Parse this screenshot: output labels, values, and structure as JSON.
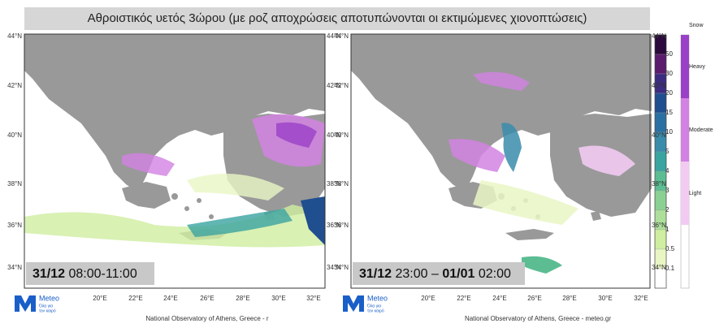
{
  "header": {
    "title": "Αθροιστικός υετός 3ώρου (με ροζ αποχρώσεις αποτυπώνονται οι εκτιμώμενες χιονοπτώσεις)"
  },
  "maps": [
    {
      "lat_labels": [
        "44°N",
        "42°N",
        "40°N",
        "38°N",
        "36°N",
        "34°N"
      ],
      "lon_labels": [
        "20°E",
        "22°E",
        "24°E",
        "26°E",
        "28°E",
        "30°E",
        "32°E"
      ],
      "date_parts": [
        {
          "text": "31/12",
          "bold": true
        },
        {
          "text": " 08:00-11:00",
          "bold": false
        }
      ],
      "footer": "National Observatory of Athens, Greece - r"
    },
    {
      "lat_labels": [
        "44°N",
        "42°N",
        "40°N",
        "38°N",
        "36°N",
        "34°N"
      ],
      "lon_labels": [
        "20°E",
        "22°E",
        "24°E",
        "26°E",
        "28°E",
        "30°E",
        "32°E"
      ],
      "date_parts": [
        {
          "text": "31/12",
          "bold": true
        },
        {
          "text": " 23:00 – ",
          "bold": false
        },
        {
          "text": "01/01",
          "bold": true
        },
        {
          "text": " 02:00",
          "bold": false
        }
      ],
      "footer": "National Observatory of Athens, Greece - meteo.gr"
    }
  ],
  "logo": {
    "name": "Meteo",
    "tagline_1": "Όλα για",
    "tagline_2": "τον καιρό"
  },
  "rain_scale": {
    "labels": [
      "50",
      "30",
      "20",
      "15",
      "10",
      "5",
      "4",
      "3",
      "2",
      "1",
      "0.5",
      "0.1"
    ],
    "colors": [
      "#2a0b3c",
      "#5b1c6e",
      "#3b2c80",
      "#1f4f8f",
      "#2b70a2",
      "#3a8cab",
      "#3aa4a0",
      "#5cbd92",
      "#8ad092",
      "#addf9b",
      "#cfeea0",
      "#e9f6c4",
      "#ffffff"
    ]
  },
  "snow_scale": {
    "title": "Snow",
    "labels": [
      "Heavy",
      "Moderate",
      "Light"
    ],
    "colors": [
      "#9a40c8",
      "#d282e2",
      "#f2caf2"
    ]
  }
}
